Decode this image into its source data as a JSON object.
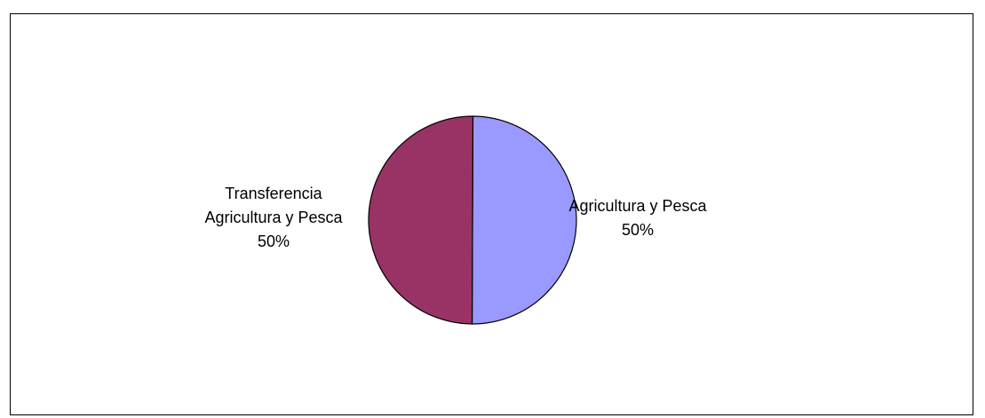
{
  "chart_data": {
    "type": "pie",
    "title": "",
    "slices": [
      {
        "name": "Agricultura y Pesca",
        "value": 50,
        "percent_label": "50%",
        "color": "#9999ff"
      },
      {
        "name": "Transferencia Agricultura y Pesca",
        "name_lines": [
          "Transferencia",
          "Agricultura y Pesca"
        ],
        "value": 50,
        "percent_label": "50%",
        "color": "#993366"
      }
    ],
    "legend": "none"
  }
}
